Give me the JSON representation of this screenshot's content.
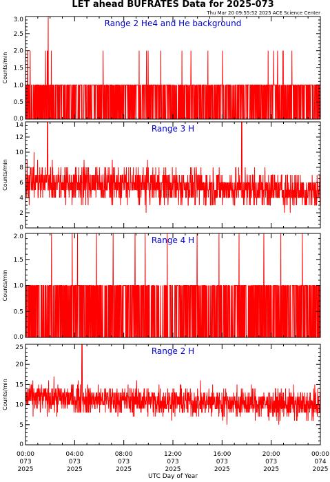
{
  "title": "LET ahead BUFRATES Data for 2025-073",
  "timestamp": "Thu Mar 20 09:55:52 2025 ACE Science Center",
  "colors": {
    "series": "#ff0000",
    "panel_label": "#0000cc",
    "axis": "#000000"
  },
  "x_axis": {
    "label": "UTC Day of Year",
    "ticks": [
      {
        "time": "00:00",
        "doy": "073",
        "year": "2025"
      },
      {
        "time": "04:00",
        "doy": "073",
        "year": "2025"
      },
      {
        "time": "08:00",
        "doy": "073",
        "year": "2025"
      },
      {
        "time": "12:00",
        "doy": "073",
        "year": "2025"
      },
      {
        "time": "16:00",
        "doy": "073",
        "year": "2025"
      },
      {
        "time": "20:00",
        "doy": "073",
        "year": "2025"
      },
      {
        "time": "00:00",
        "doy": "074",
        "year": "2025"
      }
    ]
  },
  "chart_data": [
    {
      "type": "line",
      "title": "Range 2 He4 and He background",
      "ylabel": "Counts/min",
      "xlim_hours": [
        0,
        24
      ],
      "ylim": [
        0,
        3
      ],
      "yticks": [
        "0.0",
        "0.5",
        "1.0",
        "1.5",
        "2.0",
        "2.5",
        "3.0"
      ],
      "minor_per_major": 5,
      "series": [
        {
          "values_summary": "counts mostly 0 or 1, occasional 2, one spike to 3 near 01:50",
          "min": 0,
          "max": 3,
          "typical": 1
        }
      ]
    },
    {
      "type": "line",
      "title": "Range 3 H",
      "ylabel": "Counts/min",
      "xlim_hours": [
        0,
        24
      ],
      "ylim": [
        0,
        14
      ],
      "yticks": [
        "0",
        "2",
        "4",
        "6",
        "8",
        "10",
        "12",
        "14"
      ],
      "minor_per_major": 4,
      "series": [
        {
          "values_summary": "noisy counts around 5-6, range 0-14, slowly decreasing through the day",
          "min": 0,
          "max": 14,
          "typical": 5
        }
      ]
    },
    {
      "type": "line",
      "title": "Range 4 H",
      "ylabel": "Counts/min",
      "xlim_hours": [
        0,
        24
      ],
      "ylim": [
        0,
        2
      ],
      "yticks": [
        "0.0",
        "0.5",
        "1.0",
        "1.5",
        "2.0"
      ],
      "minor_per_major": 5,
      "series": [
        {
          "values_summary": "counts mostly 1 or 0, occasional 2",
          "min": 0,
          "max": 2,
          "typical": 1
        }
      ]
    },
    {
      "type": "line",
      "title": "Range 2 H",
      "ylabel": "Counts/min",
      "xlim_hours": [
        0,
        24
      ],
      "ylim": [
        0,
        25
      ],
      "yticks": [
        "0",
        "5",
        "10",
        "15",
        "20",
        "25"
      ],
      "minor_per_major": 5,
      "series": [
        {
          "values_summary": "noisy counts around 10-12, range 1-25, slowly decreasing",
          "min": 1,
          "max": 25,
          "typical": 11
        }
      ]
    }
  ]
}
